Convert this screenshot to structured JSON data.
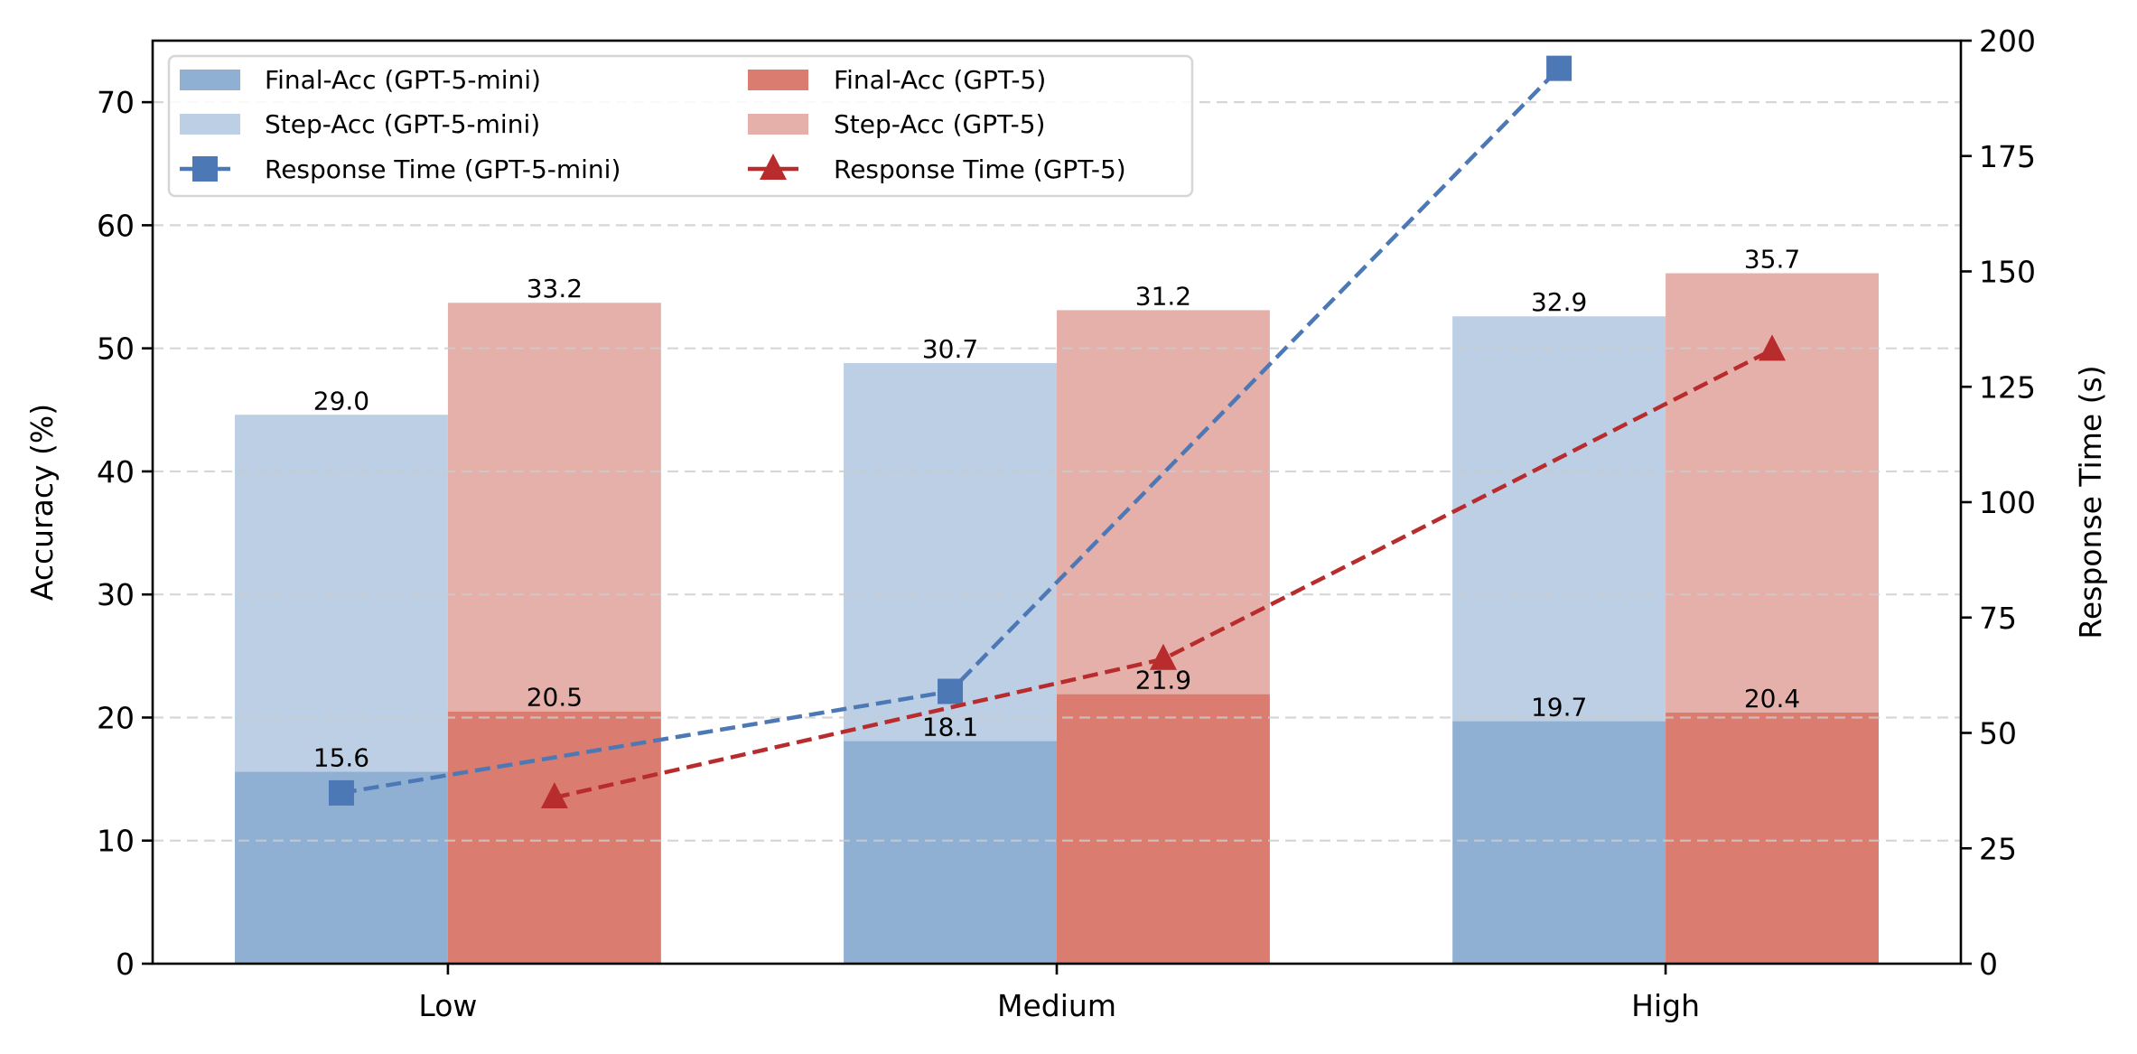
{
  "chart_data": {
    "type": "bar",
    "subtype": "stacked-grouped-bar-with-dual-axis-lines",
    "title": "",
    "xlabel": "",
    "ylabel": "Accuracy (%)",
    "y2label": "Response Time (s)",
    "categories": [
      "Low",
      "Medium",
      "High"
    ],
    "ylim": [
      0,
      75
    ],
    "y2lim": [
      0,
      200
    ],
    "yticks": [
      0,
      10,
      20,
      30,
      40,
      50,
      60,
      70
    ],
    "y2ticks": [
      0,
      25,
      50,
      75,
      100,
      125,
      150,
      175,
      200
    ],
    "grid": true,
    "legend_position": "top-left",
    "legend_columns": 2,
    "bar_series": [
      {
        "name": "Final-Acc (GPT-5-mini)",
        "model": "GPT-5-mini",
        "metric": "Final-Acc",
        "values": [
          15.6,
          18.1,
          19.7
        ],
        "color": "#8fb0d3"
      },
      {
        "name": "Step-Acc (GPT-5-mini)",
        "model": "GPT-5-mini",
        "metric": "Step-Acc",
        "stacked_on": "Final-Acc (GPT-5-mini)",
        "values": [
          29.0,
          30.7,
          32.9
        ],
        "color": "#bccfe5"
      },
      {
        "name": "Final-Acc (GPT-5)",
        "model": "GPT-5",
        "metric": "Final-Acc",
        "values": [
          20.5,
          21.9,
          20.4
        ],
        "color": "#da7c70"
      },
      {
        "name": "Step-Acc (GPT-5)",
        "model": "GPT-5",
        "metric": "Step-Acc",
        "stacked_on": "Final-Acc (GPT-5)",
        "values": [
          33.2,
          31.2,
          35.7
        ],
        "color": "#e5b0aa"
      }
    ],
    "line_series": [
      {
        "name": "Response Time (GPT-5-mini)",
        "axis": "right",
        "marker": "square",
        "linestyle": "dashed",
        "values": [
          37,
          59,
          194
        ],
        "color": "#4c78b5"
      },
      {
        "name": "Response Time (GPT-5)",
        "axis": "right",
        "marker": "triangle",
        "linestyle": "dashed",
        "values": [
          36,
          66,
          133
        ],
        "color": "#b82c2e"
      }
    ],
    "legend": [
      "Final-Acc (GPT-5-mini)",
      "Step-Acc (GPT-5-mini)",
      "Response Time (GPT-5-mini)",
      "Final-Acc (GPT-5)",
      "Step-Acc (GPT-5)",
      "Response Time (GPT-5)"
    ]
  }
}
